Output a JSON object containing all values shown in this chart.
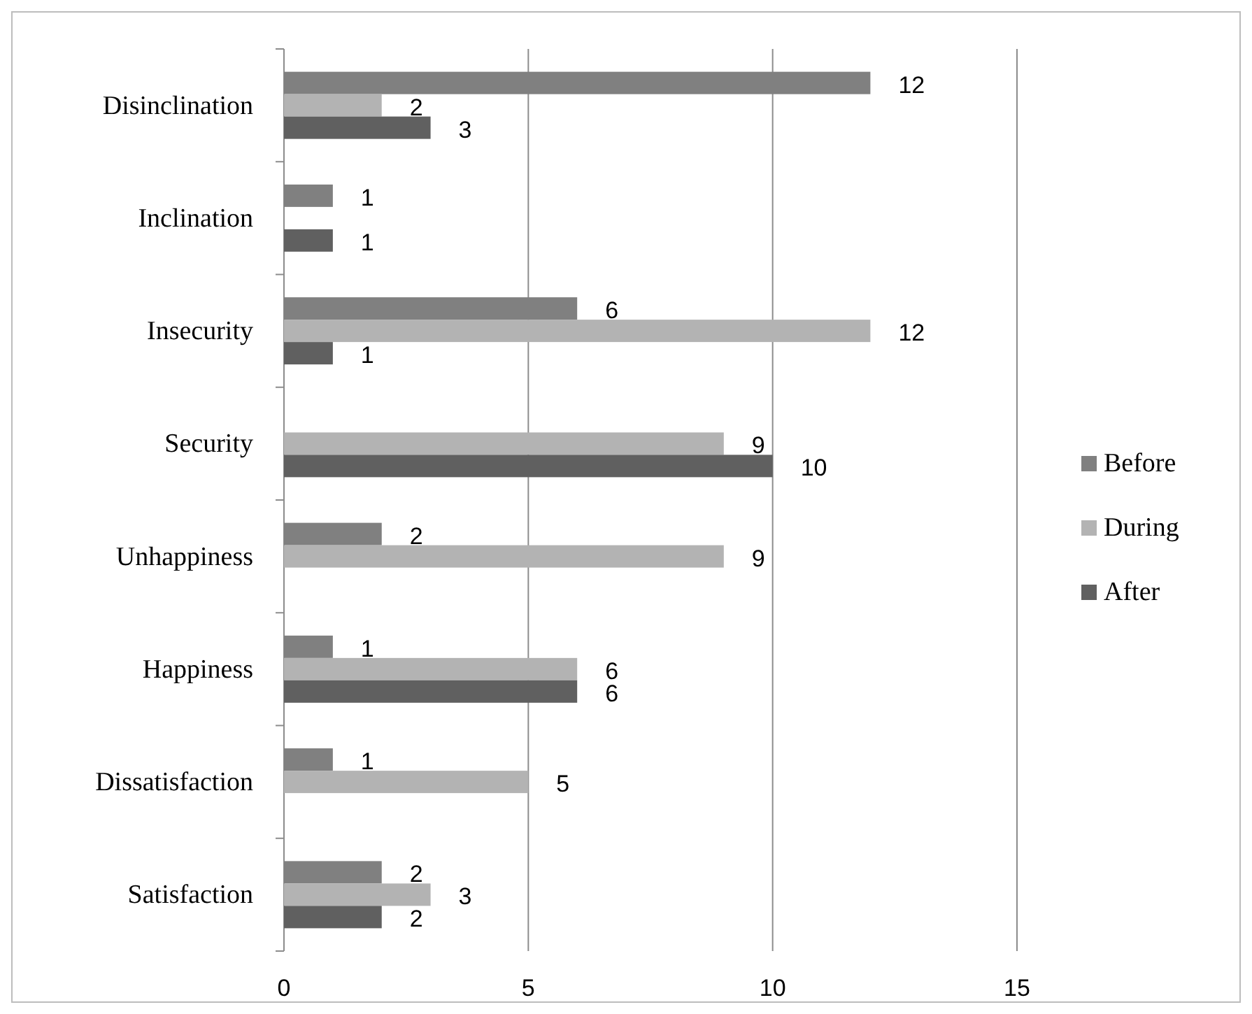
{
  "chart_data": {
    "type": "bar",
    "orientation": "horizontal",
    "categories": [
      "Disinclination",
      "Inclination",
      "Insecurity",
      "Security",
      "Unhappiness",
      "Happiness",
      "Dissatisfaction",
      "Satisfaction"
    ],
    "series": [
      {
        "name": "Before",
        "color": "#808080",
        "values": [
          12,
          1,
          6,
          null,
          2,
          1,
          1,
          2
        ]
      },
      {
        "name": "During",
        "color": "#b3b3b3",
        "values": [
          2,
          null,
          12,
          9,
          9,
          6,
          5,
          3
        ]
      },
      {
        "name": "After",
        "color": "#606060",
        "values": [
          3,
          1,
          1,
          10,
          null,
          6,
          null,
          2
        ]
      }
    ],
    "xlim": [
      0,
      15
    ],
    "xticks": [
      0,
      5,
      10,
      15
    ],
    "grid": "x",
    "legend": "right",
    "data_labels": true
  }
}
